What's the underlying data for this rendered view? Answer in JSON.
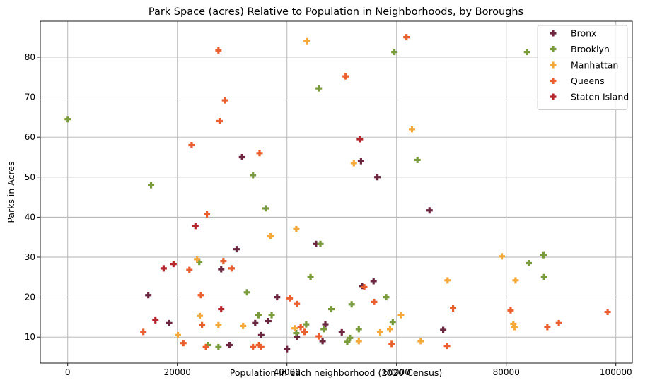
{
  "chart_data": {
    "type": "scatter",
    "title": "Park Space (acres) Relative to Population in Neighborhoods, by Boroughs",
    "xlabel": "Population in each neighborhood (2020 Census)",
    "ylabel": "Parks in Acres",
    "xlim": [
      -5000,
      103000
    ],
    "ylim": [
      3.5,
      89
    ],
    "xticks": [
      0,
      20000,
      40000,
      60000,
      80000,
      100000
    ],
    "yticks": [
      10,
      20,
      30,
      40,
      50,
      60,
      70,
      80
    ],
    "grid": true,
    "legend_position": "top-right",
    "marker": "plus",
    "series": [
      {
        "name": "Bronx",
        "color": "#6b2640",
        "points": [
          [
            14700,
            20.5
          ],
          [
            18500,
            13.5
          ],
          [
            28000,
            27
          ],
          [
            30800,
            32
          ],
          [
            31800,
            55
          ],
          [
            29500,
            8
          ],
          [
            34200,
            13.5
          ],
          [
            35300,
            10.5
          ],
          [
            36600,
            14
          ],
          [
            38200,
            20
          ],
          [
            40000,
            7
          ],
          [
            41800,
            10
          ],
          [
            45300,
            33.3
          ],
          [
            46500,
            9
          ],
          [
            47000,
            13.2
          ],
          [
            50000,
            11.2
          ],
          [
            53500,
            54
          ],
          [
            53700,
            22.8
          ],
          [
            55800,
            24
          ],
          [
            56500,
            50
          ],
          [
            66000,
            41.7
          ],
          [
            68500,
            11.8
          ]
        ]
      },
      {
        "name": "Brooklyn",
        "color": "#7a9a3e",
        "points": [
          [
            0,
            64.5
          ],
          [
            15200,
            48
          ],
          [
            24000,
            28.8
          ],
          [
            25600,
            8
          ],
          [
            27500,
            7.5
          ],
          [
            32700,
            21.2
          ],
          [
            33800,
            50.5
          ],
          [
            34800,
            15.5
          ],
          [
            36100,
            42.2
          ],
          [
            37200,
            15.5
          ],
          [
            41700,
            11
          ],
          [
            43500,
            13.2
          ],
          [
            44300,
            25
          ],
          [
            45800,
            72.2
          ],
          [
            46100,
            33.3
          ],
          [
            46700,
            12
          ],
          [
            48100,
            17
          ],
          [
            51000,
            8.8
          ],
          [
            51500,
            9.8
          ],
          [
            51800,
            18.2
          ],
          [
            53100,
            12
          ],
          [
            58100,
            20
          ],
          [
            59300,
            13.8
          ],
          [
            59600,
            81.3
          ],
          [
            63800,
            54.3
          ],
          [
            83800,
            81.3
          ],
          [
            84100,
            28.5
          ],
          [
            86800,
            30.5
          ],
          [
            86900,
            25
          ]
        ]
      },
      {
        "name": "Manhattan",
        "color": "#f3a93b",
        "points": [
          [
            20100,
            10.5
          ],
          [
            23600,
            29.5
          ],
          [
            24100,
            15.3
          ],
          [
            27500,
            13
          ],
          [
            32000,
            12.8
          ],
          [
            37000,
            35.2
          ],
          [
            41400,
            12.2
          ],
          [
            41700,
            37
          ],
          [
            43600,
            84
          ],
          [
            52200,
            53.5
          ],
          [
            53100,
            9
          ],
          [
            57000,
            11.2
          ],
          [
            58800,
            12
          ],
          [
            60800,
            15.5
          ],
          [
            62800,
            62
          ],
          [
            64400,
            9
          ],
          [
            69300,
            24.2
          ],
          [
            79200,
            30.2
          ],
          [
            81300,
            13.3
          ],
          [
            81500,
            12.5
          ],
          [
            81700,
            24.2
          ]
        ]
      },
      {
        "name": "Queens",
        "color": "#ea5f2f",
        "points": [
          [
            13800,
            11.3
          ],
          [
            21100,
            8.5
          ],
          [
            22200,
            26.8
          ],
          [
            22600,
            58
          ],
          [
            24300,
            20.5
          ],
          [
            24500,
            13
          ],
          [
            25200,
            7.5
          ],
          [
            25400,
            40.7
          ],
          [
            27500,
            81.7
          ],
          [
            27700,
            64
          ],
          [
            28400,
            29
          ],
          [
            28700,
            69.2
          ],
          [
            29900,
            27.2
          ],
          [
            33800,
            7.5
          ],
          [
            34900,
            8
          ],
          [
            35000,
            56
          ],
          [
            35300,
            7.5
          ],
          [
            42500,
            12.5
          ],
          [
            43200,
            11.3
          ],
          [
            40500,
            19.7
          ],
          [
            41800,
            18.3
          ],
          [
            45800,
            10.2
          ],
          [
            50700,
            75.2
          ],
          [
            54100,
            22.5
          ],
          [
            55900,
            18.8
          ],
          [
            59100,
            8.3
          ],
          [
            61800,
            85
          ],
          [
            69200,
            7.8
          ],
          [
            70300,
            17.2
          ],
          [
            80800,
            16.7
          ],
          [
            87500,
            12.5
          ],
          [
            89600,
            13.5
          ],
          [
            98500,
            16.3
          ]
        ]
      },
      {
        "name": "Staten Island",
        "color": "#b5252c",
        "points": [
          [
            16000,
            14.2
          ],
          [
            17500,
            27.2
          ],
          [
            19300,
            28.3
          ],
          [
            23300,
            37.8
          ],
          [
            28000,
            17
          ],
          [
            53300,
            59.5
          ]
        ]
      }
    ]
  }
}
